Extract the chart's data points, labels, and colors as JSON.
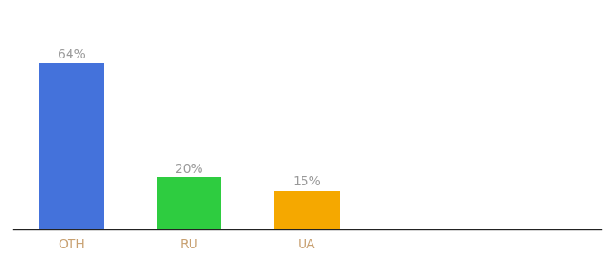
{
  "categories": [
    "OTH",
    "RU",
    "UA"
  ],
  "values": [
    64,
    20,
    15
  ],
  "bar_colors": [
    "#4472db",
    "#2ecc40",
    "#f5a800"
  ],
  "labels": [
    "64%",
    "20%",
    "15%"
  ],
  "background_color": "#ffffff",
  "label_color": "#999999",
  "label_fontsize": 10,
  "tick_fontsize": 10,
  "tick_color": "#c8a070",
  "ylim": [
    0,
    80
  ],
  "bar_width": 0.55,
  "x_positions": [
    0,
    1,
    2
  ],
  "xlim": [
    -0.5,
    4.5
  ]
}
